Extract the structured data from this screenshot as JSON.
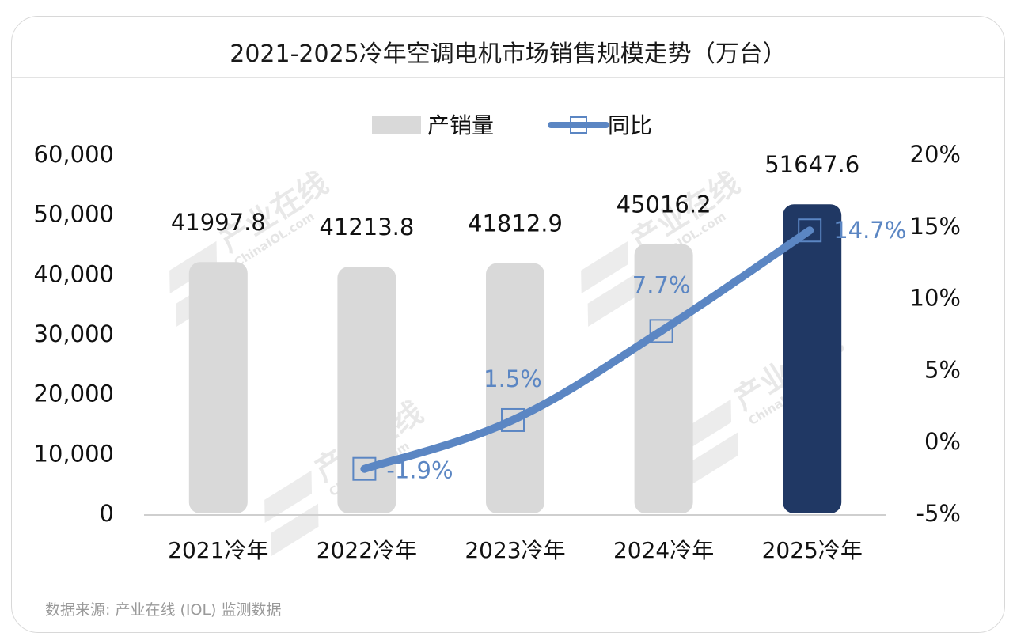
{
  "source_note": "数据来源: 产业在线 (IOL) 监测数据",
  "watermark": {
    "brand": "产业在线",
    "site": "ChinaIOL.com"
  },
  "chart_data": {
    "type": "bar",
    "title": "2021-2025冷年空调电机市场销售规模走势（万台）",
    "categories": [
      "2021冷年",
      "2022冷年",
      "2023冷年",
      "2024冷年",
      "2025冷年"
    ],
    "series": [
      {
        "name": "产销量",
        "type": "bar",
        "axis": "left",
        "values": [
          41997.8,
          41213.8,
          41812.9,
          45016.2,
          51647.6
        ],
        "value_labels": [
          "41997.8",
          "41213.8",
          "41812.9",
          "45016.2",
          "51647.6"
        ],
        "color": "#d9d9d9",
        "highlight_color": "#203864",
        "highlight_index": 4
      },
      {
        "name": "同比",
        "type": "line",
        "axis": "right",
        "values": [
          null,
          -1.9,
          1.5,
          7.7,
          14.7
        ],
        "value_labels": [
          "",
          "-1.9%",
          "1.5%",
          "7.7%",
          "14.7%"
        ],
        "color": "#5b86c3"
      }
    ],
    "y_left": {
      "ylim": [
        0,
        60000
      ],
      "ticks": [
        "0",
        "10,000",
        "20,000",
        "30,000",
        "40,000",
        "50,000",
        "60,000"
      ]
    },
    "y_right": {
      "ylim": [
        -5,
        20
      ],
      "ticks": [
        "-5%",
        "0%",
        "5%",
        "10%",
        "15%",
        "20%"
      ]
    },
    "legend_position": "top-center",
    "grid": false
  }
}
